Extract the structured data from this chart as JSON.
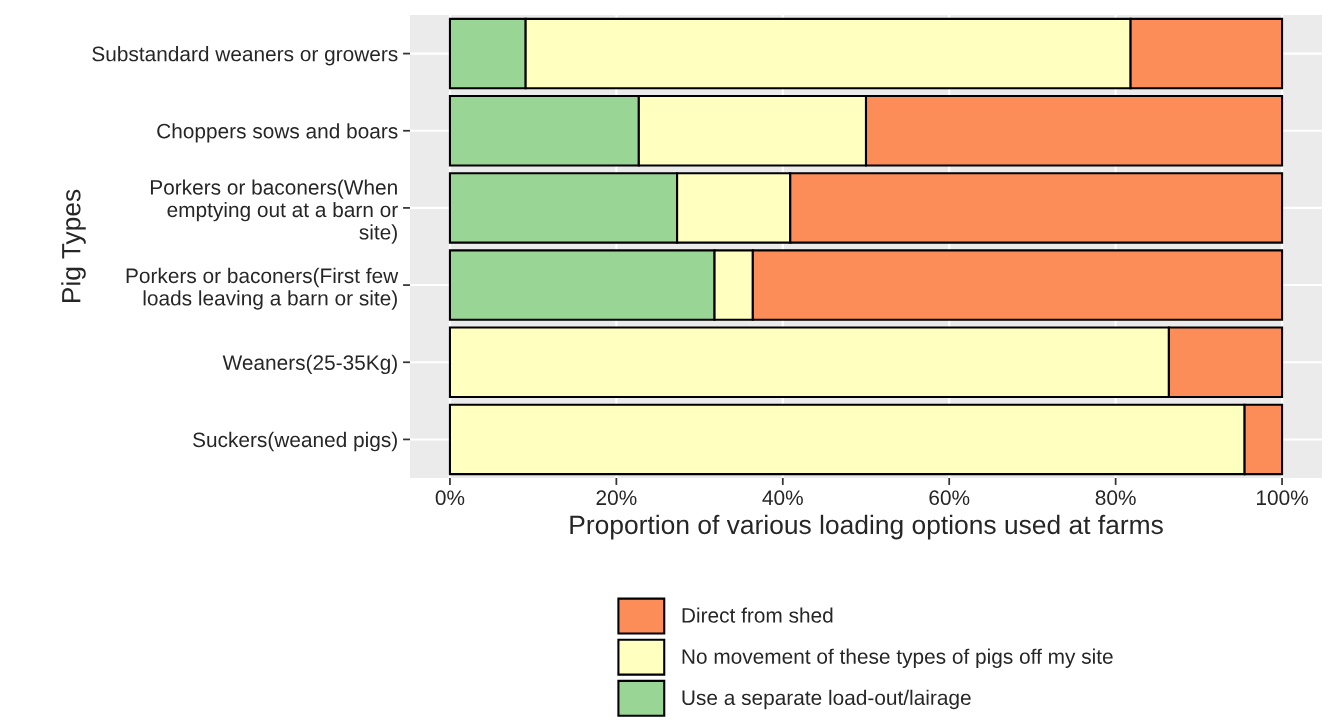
{
  "chart_data": {
    "type": "bar",
    "orientation": "horizontal",
    "stacked": true,
    "xlabel": "Proportion of various loading options used at farms",
    "ylabel": "Pig Types",
    "categories": [
      "Substandard weaners or growers",
      "Choppers sows and boars",
      "Porkers or baconers(When\nemptying out at a barn or\nsite)",
      "Porkers or baconers(First few\nloads leaving a barn or site)",
      "Weaners(25-35Kg)",
      "Suckers(weaned pigs)"
    ],
    "series": [
      {
        "name": "Use a separate load-out/lairage",
        "color": "#99d594",
        "values": [
          9.1,
          22.7,
          27.3,
          31.8,
          null,
          null
        ]
      },
      {
        "name": "No movement of these types of pigs off my site",
        "color": "#ffffbf",
        "values": [
          72.7,
          27.3,
          13.6,
          4.6,
          86.4,
          95.5
        ]
      },
      {
        "name": "Direct from shed",
        "color": "#fc8d59",
        "values": [
          18.2,
          50.0,
          59.1,
          63.6,
          13.6,
          4.5
        ]
      }
    ],
    "xlim": [
      -4.8,
      104.8
    ],
    "xticks": [
      {
        "value": 0,
        "label": "0%"
      },
      {
        "value": 20,
        "label": "20%"
      },
      {
        "value": 40,
        "label": "40%"
      },
      {
        "value": 60,
        "label": "60%"
      },
      {
        "value": 80,
        "label": "80%"
      },
      {
        "value": 100,
        "label": "100%"
      }
    ],
    "grid": true,
    "legend": "bottom"
  }
}
